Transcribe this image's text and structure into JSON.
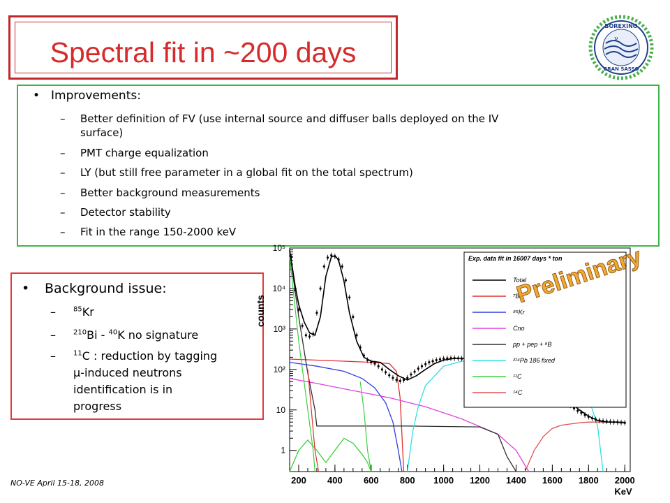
{
  "slide": {
    "title": "Spectral fit in ~200 days",
    "footer": "NO-VE April 15-18, 2008"
  },
  "logo": {
    "top_text": "BOREXINO",
    "bottom_text": "GRAN SASSO",
    "nu_label": "ν"
  },
  "improvements": {
    "bullet": "•",
    "heading": "Improvements:",
    "dash": "–",
    "items": [
      "Better definition of FV (use internal source and diffuser balls deployed on the IV",
      "surface)",
      "PMT charge equalization",
      "LY (but still free parameter in a global fit on the total spectrum)",
      "Better background  measurements",
      "Detector stability",
      "Fit in the range 150-2000 keV"
    ]
  },
  "background": {
    "bullet": "•",
    "heading": "Background issue:",
    "dash": "–",
    "kr_sup": "85",
    "kr_text": "Kr",
    "bi_sup": "210",
    "bi_text": "Bi - ",
    "k_sup": "40",
    "k_text": "K no signature",
    "c_sup": "11",
    "c_text": "C : reduction by tagging",
    "c_line2": "μ-induced neutrons",
    "c_line3": "identification is in",
    "c_line4": "progress"
  },
  "colors": {
    "title_red": "#d62b2b",
    "green_border": "#3cb54a",
    "red_border": "#e53a3a"
  },
  "chart_data": {
    "type": "line",
    "legend_title": "Exp. data fit in 16007 days * ton",
    "watermark": "Preliminary",
    "ylabel": "counts",
    "xlabel": "KeV",
    "xlim": [
      150,
      2030
    ],
    "ylim": [
      0.3,
      100000
    ],
    "yscale": "log",
    "x_ticks": [
      "200",
      "400",
      "600",
      "800",
      "1000",
      "1200",
      "1400",
      "1600",
      "1800",
      "2000"
    ],
    "y_ticks": [
      "1",
      "10",
      "10²",
      "10³",
      "10⁴",
      "10⁵"
    ],
    "legend_position": "top-right",
    "series": [
      {
        "name": "Total",
        "color": "#000000",
        "x": [
          150,
          180,
          200,
          230,
          260,
          290,
          320,
          350,
          380,
          400,
          420,
          450,
          480,
          520,
          560,
          600,
          650,
          700,
          750,
          800,
          850,
          900,
          950,
          1000,
          1050,
          1100,
          1150,
          1200,
          1250,
          1300,
          1350,
          1400,
          1450,
          1500,
          1550,
          1600,
          1650,
          1700,
          1750,
          1800,
          1850,
          1900,
          1950,
          2000
        ],
        "y": [
          90000,
          12000,
          4000,
          1500,
          800,
          700,
          2000,
          20000,
          60000,
          65000,
          50000,
          15000,
          2500,
          500,
          200,
          160,
          150,
          100,
          70,
          55,
          70,
          100,
          140,
          170,
          185,
          190,
          180,
          165,
          145,
          120,
          95,
          75,
          60,
          48,
          38,
          30,
          22,
          15,
          10,
          7,
          5.5,
          5,
          5,
          4.8
        ]
      },
      {
        "name": "⁷Be",
        "color": "#e03030",
        "x": [
          150,
          300,
          450,
          600,
          700,
          740,
          760,
          780
        ],
        "y": [
          180,
          170,
          160,
          150,
          140,
          90,
          20,
          0.3
        ]
      },
      {
        "name": "⁸⁵Kr",
        "color": "#2f3fe0",
        "x": [
          150,
          300,
          450,
          550,
          620,
          680,
          720,
          750,
          770
        ],
        "y": [
          150,
          120,
          90,
          60,
          35,
          15,
          5,
          1,
          0.3
        ]
      },
      {
        "name": "Cno",
        "color": "#e040e0",
        "x": [
          150,
          300,
          500,
          700,
          900,
          1100,
          1300,
          1400,
          1470
        ],
        "y": [
          60,
          45,
          30,
          20,
          12,
          6,
          2.5,
          1,
          0.3
        ]
      },
      {
        "name": "pp + pep + ⁸B",
        "color": "#303030",
        "x": [
          150,
          200,
          250,
          290,
          300,
          400,
          600,
          800,
          1000,
          1200,
          1300,
          1350,
          1400
        ],
        "y": [
          80000,
          2000,
          80,
          10,
          4,
          4,
          4,
          4,
          3.9,
          3.8,
          2.5,
          0.7,
          0.3
        ]
      },
      {
        "name": "²¹⁴Pb 186 fixed",
        "color": "#30e0e0",
        "x": [
          800,
          830,
          860,
          900,
          1000,
          1100,
          1200,
          1300,
          1400,
          1500,
          1600,
          1700,
          1800,
          1850,
          1880
        ],
        "y": [
          0.3,
          3,
          12,
          40,
          120,
          160,
          170,
          160,
          140,
          110,
          80,
          50,
          20,
          4,
          0.3
        ]
      },
      {
        "name": "¹¹C",
        "color": "#3ecf3e",
        "x": [
          150,
          200,
          250,
          300,
          350,
          400,
          450,
          500,
          550,
          580,
          600
        ],
        "y": [
          0.3,
          1,
          1.8,
          1,
          0.5,
          1,
          2,
          1.5,
          0.8,
          0.5,
          0.3
        ]
      },
      {
        "name": "¹⁴C",
        "color": "#e05050",
        "x": [
          1450,
          1500,
          1550,
          1600,
          1650,
          1700,
          1750,
          1800,
          1850,
          1900,
          1950,
          2000
        ],
        "y": [
          0.3,
          1,
          2.2,
          3.5,
          4.2,
          4.5,
          4.8,
          5,
          5,
          5,
          5,
          5
        ]
      }
    ],
    "sharp_green": {
      "x": [
        150,
        200,
        250,
        280,
        290
      ],
      "y": [
        60000,
        500,
        10,
        1,
        0.3
      ]
    },
    "sharp_green2": {
      "x": [
        540,
        560,
        580,
        600
      ],
      "y": [
        50,
        10,
        1,
        0.3
      ]
    },
    "sharp_red": {
      "x": [
        250,
        270,
        290,
        310
      ],
      "y": [
        100,
        10,
        1,
        0.3
      ]
    },
    "data_points": {
      "x": [
        160,
        180,
        200,
        220,
        240,
        260,
        280,
        300,
        320,
        340,
        360,
        380,
        400,
        420,
        440,
        460,
        480,
        500,
        520,
        540,
        560,
        580,
        600,
        620,
        640,
        660,
        680,
        700,
        720,
        740,
        760,
        780,
        800,
        820,
        840,
        860,
        880,
        900,
        920,
        940,
        960,
        980,
        1000,
        1020,
        1040,
        1060,
        1080,
        1100,
        1120,
        1140,
        1160,
        1180,
        1200,
        1220,
        1240,
        1260,
        1280,
        1300,
        1320,
        1340,
        1360,
        1380,
        1400,
        1420,
        1440,
        1460,
        1480,
        1500,
        1520,
        1540,
        1560,
        1580,
        1600,
        1620,
        1640,
        1660,
        1680,
        1700,
        1720,
        1740,
        1760,
        1780,
        1800,
        1820,
        1840,
        1860,
        1880,
        1900,
        1920,
        1940,
        1960,
        1980,
        2000
      ],
      "y": [
        60000,
        9000,
        3000,
        1200,
        700,
        650,
        750,
        2500,
        10000,
        35000,
        58000,
        66000,
        62000,
        52000,
        35000,
        16000,
        6000,
        2000,
        700,
        350,
        220,
        170,
        150,
        140,
        120,
        100,
        85,
        72,
        62,
        55,
        52,
        55,
        62,
        75,
        88,
        105,
        120,
        135,
        150,
        160,
        170,
        178,
        185,
        188,
        190,
        190,
        188,
        185,
        182,
        178,
        174,
        170,
        165,
        160,
        152,
        145,
        135,
        125,
        115,
        104,
        95,
        86,
        78,
        70,
        63,
        57,
        51,
        46,
        41,
        36,
        32,
        28,
        25,
        22,
        19,
        17,
        15,
        13,
        11,
        9.5,
        8.5,
        7.5,
        6.8,
        6.2,
        5.8,
        5.5,
        5.3,
        5.2,
        5.1,
        5,
        5,
        4.9,
        4.8
      ]
    }
  }
}
